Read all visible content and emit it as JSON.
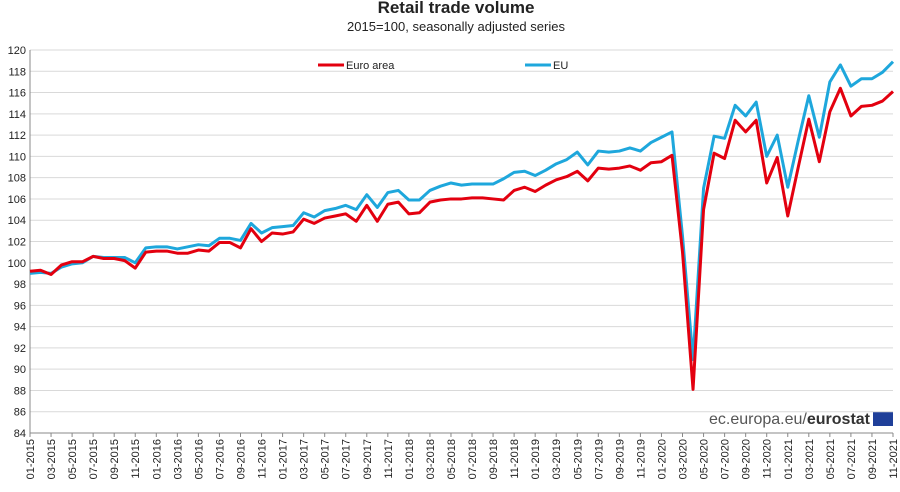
{
  "chart_data": {
    "type": "line",
    "title": "Retail trade volume",
    "subtitle": "2015=100, seasonally adjusted series",
    "watermark": "ec.europa.eu/",
    "watermark_bold": "eurostat",
    "categories": [
      "01-2015",
      null,
      "03-2015",
      null,
      "05-2015",
      null,
      "07-2015",
      null,
      "09-2015",
      null,
      "11-2015",
      null,
      "01-2016",
      null,
      "03-2016",
      null,
      "05-2016",
      null,
      "07-2016",
      null,
      "09-2016",
      null,
      "11-2016",
      null,
      "01-2017",
      null,
      "03-2017",
      null,
      "05-2017",
      null,
      "07-2017",
      null,
      "09-2017",
      null,
      "11-2017",
      null,
      "01-2018",
      null,
      "03-2018",
      null,
      "05-2018",
      null,
      "07-2018",
      null,
      "09-2018",
      null,
      "11-2018",
      null,
      "01-2019",
      null,
      "03-2019",
      null,
      "05-2019",
      null,
      "07-2019",
      null,
      "09-2019",
      null,
      "11-2019",
      null,
      "01-2020",
      null,
      "03-2020",
      null,
      "05-2020",
      null,
      "07-2020",
      null,
      "09-2020",
      null,
      "11-2020",
      null,
      "01-2021",
      null,
      "03-2021",
      null,
      "05-2021",
      null,
      "07-2021",
      null,
      "09-2021",
      null,
      "11-2021"
    ],
    "series": [
      {
        "name": "Euro area",
        "color": "#e3000f",
        "values": [
          99.2,
          99.3,
          98.9,
          99.8,
          100.1,
          100.1,
          100.6,
          100.4,
          100.4,
          100.2,
          99.5,
          101.0,
          101.1,
          101.1,
          100.9,
          100.9,
          101.2,
          101.1,
          101.9,
          101.9,
          101.4,
          103.2,
          102.0,
          102.8,
          102.7,
          102.9,
          104.1,
          103.7,
          104.2,
          104.4,
          104.6,
          103.9,
          105.4,
          103.9,
          105.5,
          105.7,
          104.6,
          104.7,
          105.7,
          105.9,
          106.0,
          106.0,
          106.1,
          106.1,
          106.0,
          105.9,
          106.8,
          107.1,
          106.7,
          107.3,
          107.8,
          108.1,
          108.6,
          107.7,
          108.9,
          108.8,
          108.9,
          109.1,
          108.7,
          109.4,
          109.5,
          110.1,
          101.0,
          88.1,
          105.0,
          110.3,
          109.8,
          113.4,
          112.3,
          113.4,
          107.5,
          109.9,
          104.4,
          109.0,
          113.5,
          109.5,
          114.2,
          116.4,
          113.8,
          114.7,
          114.8,
          115.2,
          116.1
        ]
      },
      {
        "name": "EU",
        "color": "#1ea7dc",
        "values": [
          99.0,
          99.1,
          99.0,
          99.6,
          99.9,
          100.0,
          100.6,
          100.5,
          100.5,
          100.5,
          100.0,
          101.4,
          101.5,
          101.5,
          101.3,
          101.5,
          101.7,
          101.6,
          102.3,
          102.3,
          102.1,
          103.7,
          102.8,
          103.3,
          103.4,
          103.5,
          104.7,
          104.3,
          104.9,
          105.1,
          105.4,
          105.0,
          106.4,
          105.2,
          106.6,
          106.8,
          105.9,
          105.9,
          106.8,
          107.2,
          107.5,
          107.3,
          107.4,
          107.4,
          107.4,
          107.9,
          108.5,
          108.6,
          108.2,
          108.7,
          109.3,
          109.7,
          110.4,
          109.2,
          110.5,
          110.4,
          110.5,
          110.8,
          110.5,
          111.3,
          111.8,
          112.3,
          102.5,
          90.9,
          107.0,
          111.9,
          111.7,
          114.8,
          113.8,
          115.1,
          110.0,
          112.0,
          107.1,
          111.5,
          115.7,
          111.8,
          117.0,
          118.6,
          116.6,
          117.3,
          117.3,
          117.9,
          118.9
        ]
      }
    ],
    "ylim": [
      84,
      120
    ],
    "yticks": [
      84,
      86,
      88,
      90,
      92,
      94,
      96,
      98,
      100,
      102,
      104,
      106,
      108,
      110,
      112,
      114,
      116,
      118,
      120
    ],
    "grid": true
  }
}
